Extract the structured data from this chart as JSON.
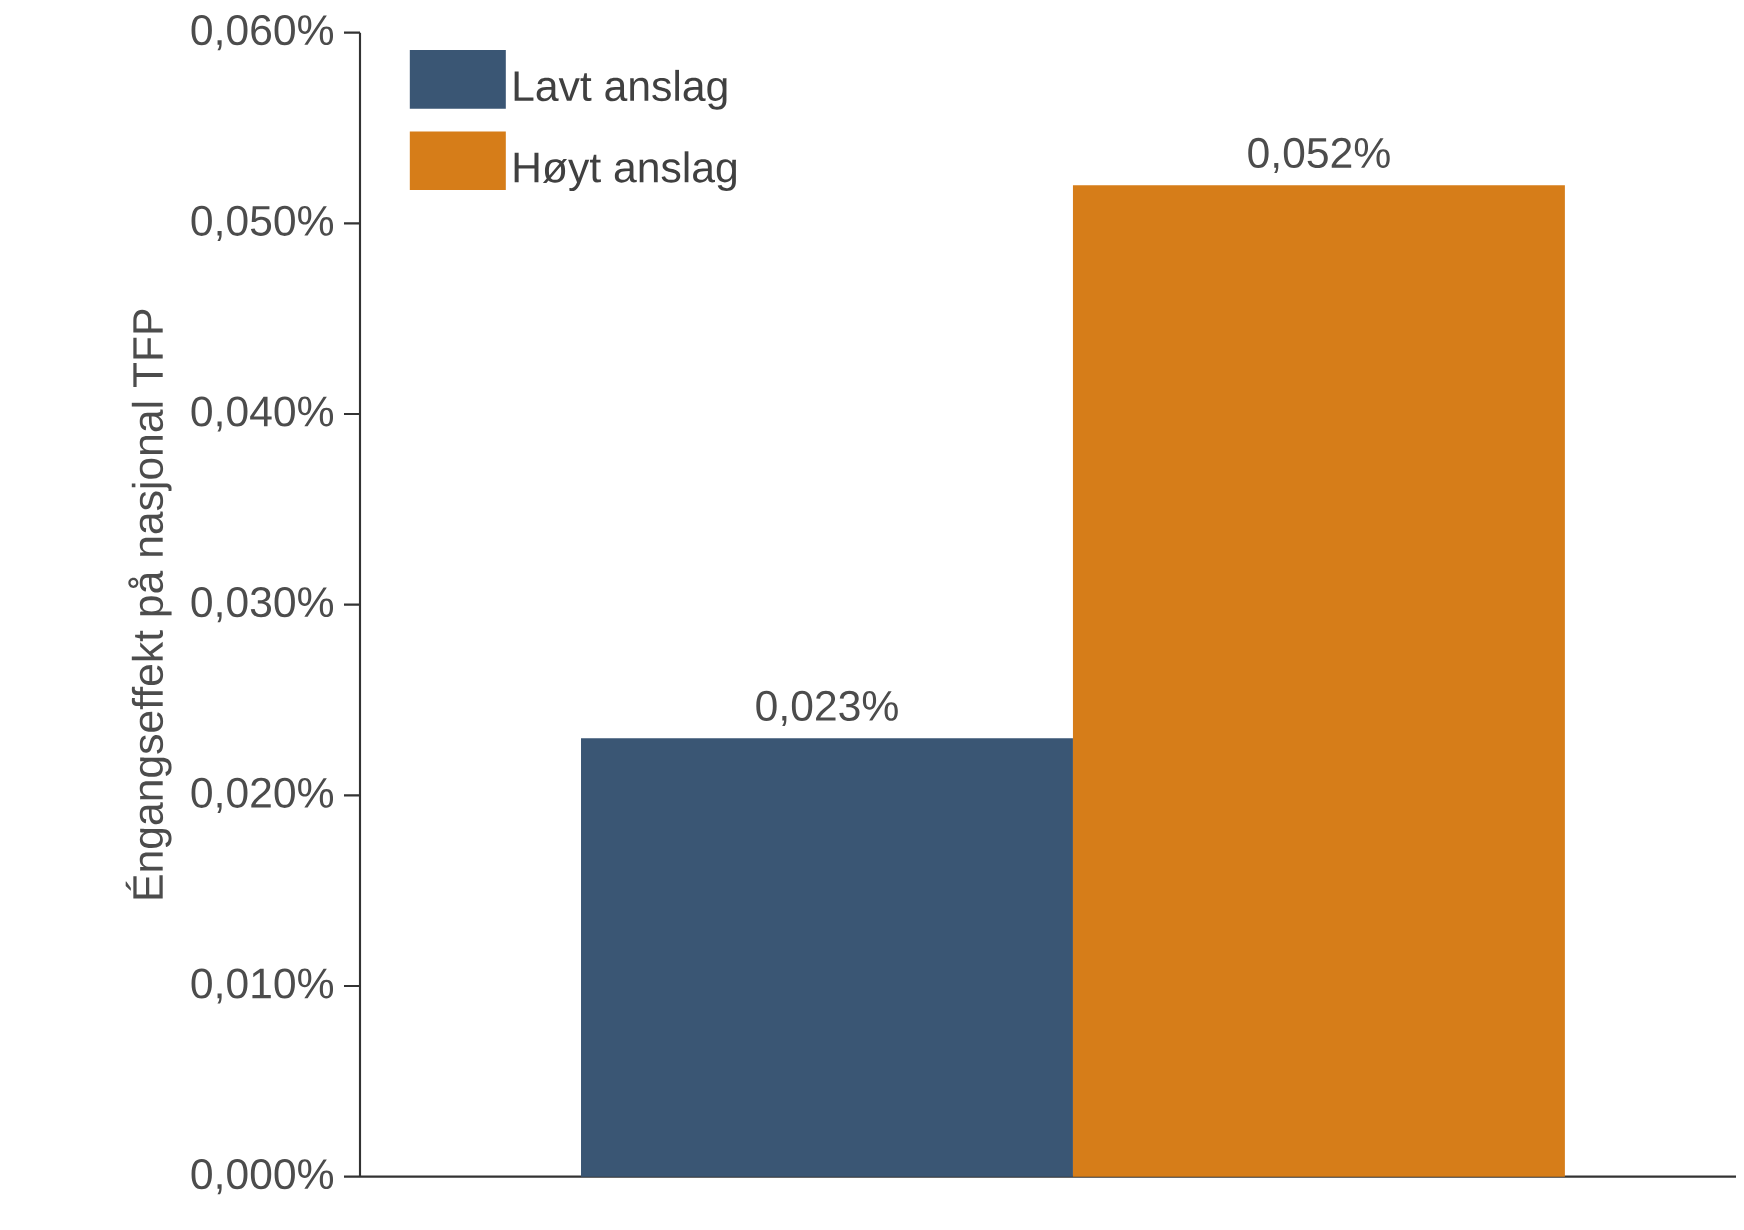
{
  "chart_data": {
    "type": "bar",
    "ylabel": "Éngangseffekt på nasjonal TFP",
    "categories": [
      null
    ],
    "series": [
      {
        "name": "Lavt anslag",
        "color": "#3a5674",
        "values": [
          0.023
        ],
        "value_labels": [
          "0,023%"
        ]
      },
      {
        "name": "Høyt anslag",
        "color": "#d67d19",
        "values": [
          0.052
        ],
        "value_labels": [
          "0,052%"
        ]
      }
    ],
    "ylim": [
      0,
      0.06
    ],
    "yticks": [
      {
        "value": 0,
        "label": "0,000%"
      },
      {
        "value": 0.01,
        "label": "0,010%"
      },
      {
        "value": 0.02,
        "label": "0,020%"
      },
      {
        "value": 0.03,
        "label": "0,030%"
      },
      {
        "value": 0.04,
        "label": "0,040%"
      },
      {
        "value": 0.05,
        "label": "0,050%"
      },
      {
        "value": 0.06,
        "label": "0,060%"
      }
    ],
    "legend": "top left"
  }
}
